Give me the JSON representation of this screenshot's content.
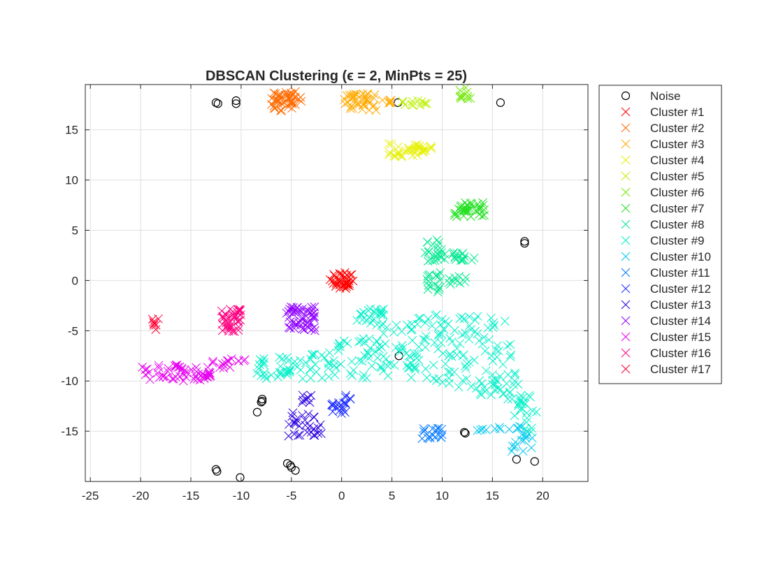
{
  "chart_data": {
    "type": "scatter",
    "title": "DBSCAN Clustering (ϵ = 2, MinPts = 25)",
    "xlabel": "",
    "ylabel": "",
    "xlim": [
      -25.5,
      24.5
    ],
    "ylim": [
      -20,
      19.5
    ],
    "x_ticks": [
      -25,
      -20,
      -15,
      -10,
      -5,
      0,
      5,
      10,
      15,
      20
    ],
    "y_ticks": [
      -15,
      -10,
      -5,
      0,
      5,
      10,
      15
    ],
    "grid": true,
    "legend_position": "outside-right",
    "series": [
      {
        "name": "Noise",
        "marker": "circle",
        "color": "#000000",
        "points": [
          [
            -12.5,
            17.7
          ],
          [
            -12.3,
            17.6
          ],
          [
            -10.5,
            17.9
          ],
          [
            -10.5,
            17.6
          ],
          [
            5.6,
            17.7
          ],
          [
            15.8,
            17.7
          ],
          [
            18.2,
            3.9
          ],
          [
            18.2,
            3.7
          ],
          [
            5.7,
            -7.5
          ],
          [
            -7.9,
            -11.8
          ],
          [
            -7.9,
            -12.0
          ],
          [
            -8.0,
            -12.1
          ],
          [
            -8.4,
            -13.1
          ],
          [
            12.2,
            -15.1
          ],
          [
            12.3,
            -15.2
          ],
          [
            -12.5,
            -18.8
          ],
          [
            -12.4,
            -19.0
          ],
          [
            -10.1,
            -19.6
          ],
          [
            -5.4,
            -18.2
          ],
          [
            -5.1,
            -18.4
          ],
          [
            -5.0,
            -18.6
          ],
          [
            -4.6,
            -18.9
          ],
          [
            17.4,
            -17.8
          ],
          [
            19.2,
            -18.0
          ]
        ]
      },
      {
        "name": "Cluster #1",
        "marker": "x",
        "color": "#ff0000",
        "shapes": [
          {
            "rect": [
              -1.2,
              1.2,
              -0.8,
              0.8
            ],
            "n": 40
          }
        ]
      },
      {
        "name": "Cluster #2",
        "marker": "x",
        "color": "#ff6a00",
        "shapes": [
          {
            "rect": [
              -7,
              -4,
              16.9,
              18.8
            ],
            "n": 45
          }
        ]
      },
      {
        "name": "Cluster #3",
        "marker": "x",
        "color": "#ffaa00",
        "shapes": [
          {
            "rect": [
              0.2,
              3.5,
              16.9,
              18.6
            ],
            "n": 40
          },
          {
            "rect": [
              3.5,
              5.2,
              17.6,
              18.0
            ],
            "n": 6
          }
        ]
      },
      {
        "name": "Cluster #4",
        "marker": "x",
        "color": "#e6f000",
        "shapes": [
          {
            "rect": [
              4.5,
              9.0,
              12.3,
              13.6
            ],
            "n": 35
          }
        ]
      },
      {
        "name": "Cluster #5",
        "marker": "x",
        "color": "#bbf000",
        "shapes": [
          {
            "rect": [
              6.0,
              8.5,
              17.4,
              17.9
            ],
            "n": 12
          }
        ]
      },
      {
        "name": "Cluster #6",
        "marker": "x",
        "color": "#6ee800",
        "shapes": [
          {
            "rect": [
              11.7,
              13.0,
              18.0,
              19.3
            ],
            "n": 10
          }
        ]
      },
      {
        "name": "Cluster #7",
        "marker": "x",
        "color": "#22e022",
        "shapes": [
          {
            "rect": [
              11.2,
              14.3,
              6.3,
              7.8
            ],
            "n": 35
          }
        ]
      },
      {
        "name": "Cluster #8",
        "marker": "x",
        "color": "#00e890",
        "shapes": [
          {
            "rect": [
              8.3,
              10.0,
              1.9,
              4.2
            ],
            "n": 22
          },
          {
            "rect": [
              10.0,
              13.5,
              2.0,
              2.8
            ],
            "n": 18
          },
          {
            "rect": [
              8.3,
              10.0,
              -1.2,
              0.8
            ],
            "n": 18
          },
          {
            "rect": [
              10.0,
              12.5,
              -0.5,
              0.6
            ],
            "n": 10
          }
        ]
      },
      {
        "name": "Cluster #9",
        "marker": "x",
        "color": "#00f0c8",
        "shapes": [
          {
            "rect": [
              1.5,
              4.2,
              -4.5,
              -2.8
            ],
            "n": 25
          },
          {
            "poly": [
              [
                -8.5,
                -9.8
              ],
              [
                -8.5,
                -7.8
              ],
              [
                -3,
                -7.2
              ],
              [
                3,
                -5.0
              ],
              [
                9.5,
                -3.2
              ],
              [
                13.5,
                -3.0
              ],
              [
                16.5,
                -4.0
              ],
              [
                17.0,
                -8.0
              ],
              [
                20.0,
                -14.0
              ],
              [
                19.0,
                -16.0
              ],
              [
                15.5,
                -12.0
              ],
              [
                11.0,
                -10.5
              ],
              [
                8.0,
                -9.8
              ],
              [
                -3,
                -9.8
              ]
            ],
            "n": 280
          }
        ]
      },
      {
        "name": "Cluster #10",
        "marker": "x",
        "color": "#00c8f0",
        "shapes": [
          {
            "rect": [
              13.5,
              19.0,
              -15.3,
              -14.5
            ],
            "n": 12
          },
          {
            "rect": [
              16.8,
              19.0,
              -17.0,
              -15.3
            ],
            "n": 14
          }
        ]
      },
      {
        "name": "Cluster #11",
        "marker": "x",
        "color": "#0078ff",
        "shapes": [
          {
            "rect": [
              8.0,
              10.3,
              -15.8,
              -14.7
            ],
            "n": 18
          }
        ]
      },
      {
        "name": "Cluster #12",
        "marker": "x",
        "color": "#1a2aff",
        "shapes": [
          {
            "rect": [
              -1.0,
              0.5,
              -13.3,
              -12.1
            ],
            "n": 16
          },
          {
            "rect": [
              0.3,
              0.9,
              -12.0,
              -11.4
            ],
            "n": 4
          }
        ]
      },
      {
        "name": "Cluster #13",
        "marker": "x",
        "color": "#2b00e0",
        "shapes": [
          {
            "rect": [
              -5.5,
              -2.0,
              -15.5,
              -13.0
            ],
            "n": 28
          },
          {
            "rect": [
              -4.0,
              -3.0,
              -12.2,
              -11.4
            ],
            "n": 8
          }
        ]
      },
      {
        "name": "Cluster #14",
        "marker": "x",
        "color": "#8f00ff",
        "shapes": [
          {
            "rect": [
              -5.5,
              -2.6,
              -5.0,
              -2.6
            ],
            "n": 50
          }
        ]
      },
      {
        "name": "Cluster #15",
        "marker": "x",
        "color": "#e600f0",
        "shapes": [
          {
            "rect": [
              -20.0,
              -13.0,
              -10.0,
              -8.4
            ],
            "n": 55
          },
          {
            "rect": [
              -13.0,
              -11.0,
              -8.8,
              -7.9
            ],
            "n": 10
          },
          {
            "rect": [
              -11.0,
              -9.5,
              -8.2,
              -7.7
            ],
            "n": 5
          }
        ]
      },
      {
        "name": "Cluster #16",
        "marker": "x",
        "color": "#ff007f",
        "shapes": [
          {
            "rect": [
              -12.0,
              -10.0,
              -5.3,
              -2.8
            ],
            "n": 40
          }
        ]
      },
      {
        "name": "Cluster #17",
        "marker": "x",
        "color": "#ff0033",
        "shapes": [
          {
            "rect": [
              -19.0,
              -18.2,
              -4.9,
              -3.7
            ],
            "n": 8
          }
        ]
      }
    ]
  }
}
